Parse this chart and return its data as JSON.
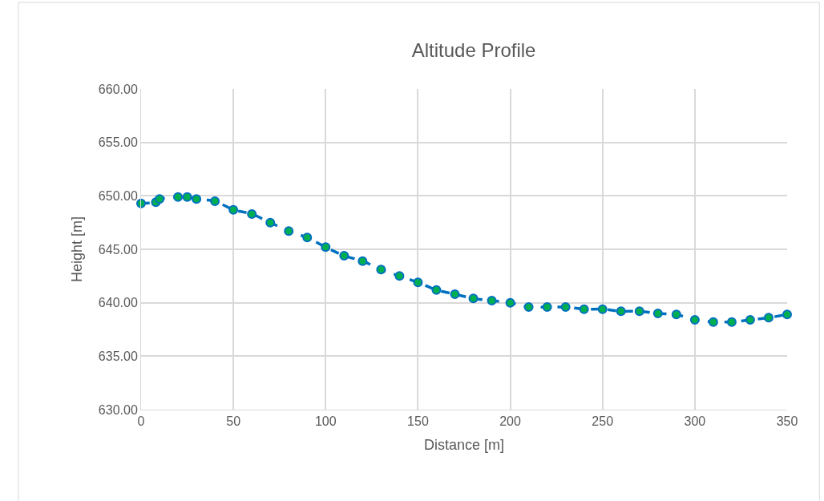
{
  "chart_data": {
    "type": "scatter",
    "title": "Altitude Profile",
    "xlabel": "Distance [m]",
    "ylabel": "Height [m]",
    "x": [
      0,
      8,
      10,
      20,
      25,
      30,
      40,
      50,
      60,
      70,
      80,
      90,
      100,
      110,
      120,
      130,
      140,
      150,
      160,
      170,
      180,
      190,
      200,
      210,
      220,
      230,
      240,
      250,
      260,
      270,
      280,
      290,
      300,
      310,
      320,
      330,
      340,
      350
    ],
    "series": [
      {
        "type": "line",
        "marker": "none",
        "color": "#0070c0",
        "values": [
          649.3,
          649.4,
          649.7,
          649.9,
          649.9,
          649.7,
          649.5,
          648.7,
          648.3,
          647.5,
          646.7,
          646.1,
          645.2,
          644.4,
          643.9,
          643.1,
          642.5,
          641.9,
          641.2,
          640.8,
          640.4,
          640.2,
          640.0,
          639.6,
          639.6,
          639.6,
          639.4,
          639.4,
          639.2,
          639.2,
          639.0,
          638.9,
          638.4,
          638.2,
          638.2,
          638.4,
          638.6,
          638.9
        ]
      },
      {
        "color": "#00b050",
        "values": [
          649.3,
          649.4,
          649.7,
          649.9,
          649.9,
          649.7,
          649.5,
          648.7,
          648.3,
          647.5,
          646.7,
          646.1,
          645.2,
          644.4,
          643.9,
          643.1,
          642.5,
          641.9,
          641.2,
          640.8,
          640.4,
          640.2,
          640.0,
          639.6,
          639.6,
          639.6,
          639.4,
          639.4,
          639.2,
          639.2,
          639.0,
          638.9,
          638.4,
          638.2,
          638.2,
          638.4,
          638.6,
          638.9
        ]
      }
    ],
    "xlim": [
      0,
      350
    ],
    "xticks": [
      0,
      50,
      100,
      150,
      200,
      250,
      300,
      350
    ],
    "ylim": [
      630,
      660
    ],
    "yticks": [
      {
        "value": 630,
        "label": "630.00"
      },
      {
        "value": 635,
        "label": "635.00"
      },
      {
        "value": 640,
        "label": "640.00"
      },
      {
        "value": 645,
        "label": "645.00"
      },
      {
        "value": 650,
        "label": "650.00"
      },
      {
        "value": 655,
        "label": "655.00"
      },
      {
        "value": 660,
        "label": "660.00"
      }
    ],
    "grid": true,
    "marker": "circle",
    "line_style": "dashed"
  }
}
